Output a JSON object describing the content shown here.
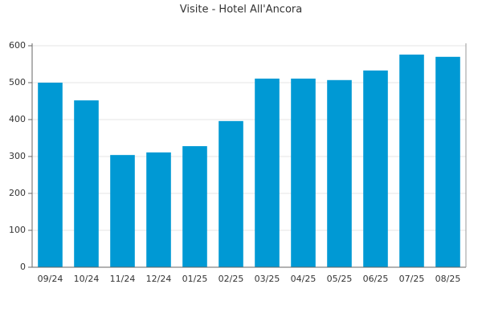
{
  "chart_data": {
    "type": "bar",
    "title": "Visite - Hotel All'Ancora",
    "categories": [
      "09/24",
      "10/24",
      "11/24",
      "12/24",
      "01/25",
      "02/25",
      "03/25",
      "04/25",
      "05/25",
      "06/25",
      "07/25",
      "08/25"
    ],
    "values": [
      500,
      452,
      304,
      311,
      328,
      396,
      511,
      511,
      507,
      533,
      576,
      570
    ],
    "color": "#0099d4",
    "ylim": [
      0,
      600
    ],
    "yticks": [
      0,
      100,
      200,
      300,
      400,
      500,
      600
    ],
    "grid": true
  }
}
